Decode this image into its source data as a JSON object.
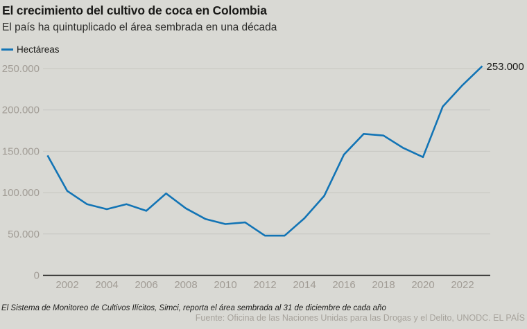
{
  "header": {
    "title": "El crecimiento del cultivo de coca en Colombia",
    "subtitle": "El país ha quintuplicado el área sembrada en una década"
  },
  "legend": {
    "label": "Hectáreas"
  },
  "chart_data": {
    "type": "line",
    "title": "El crecimiento del cultivo de coca en Colombia",
    "subtitle": "El país ha quintuplicado el área sembrada en una década",
    "series": [
      {
        "name": "Hectáreas",
        "x": [
          2001,
          2002,
          2003,
          2004,
          2005,
          2006,
          2007,
          2008,
          2009,
          2010,
          2011,
          2012,
          2013,
          2014,
          2015,
          2016,
          2017,
          2018,
          2019,
          2020,
          2021,
          2022,
          2023
        ],
        "values": [
          145000,
          102000,
          86000,
          80000,
          86000,
          78000,
          99000,
          81000,
          68000,
          62000,
          64000,
          48000,
          48000,
          69000,
          96000,
          146000,
          171000,
          169000,
          154000,
          143000,
          204000,
          230000,
          253000
        ]
      }
    ],
    "end_label": "253.000",
    "xlabel": "",
    "ylabel": "",
    "xlim": [
      2001,
      2023
    ],
    "ylim": [
      0,
      250000
    ],
    "yticks": [
      0,
      50000,
      100000,
      150000,
      200000,
      250000
    ],
    "ytick_labels": [
      "0",
      "50.000",
      "100.000",
      "150.000",
      "200.000",
      "250.000"
    ],
    "xticks": [
      2002,
      2004,
      2006,
      2008,
      2010,
      2012,
      2014,
      2016,
      2018,
      2020,
      2022
    ],
    "xtick_labels": [
      "2002",
      "2004",
      "2006",
      "2008",
      "2010",
      "2012",
      "2014",
      "2016",
      "2018",
      "2020",
      "2022"
    ],
    "grid": true,
    "legend_position": "top-left"
  },
  "footer": {
    "note": "El Sistema de Monitoreo de Cultivos Ilícitos, Simci, reporta el área sembrada al 31 de diciembre de cada año",
    "source": "Fuente: Oficina de las Naciones Unidas para las Drogas y el Delito, UNODC. EL PAÍS"
  },
  "colors": {
    "background": "#d9d9d4",
    "line": "#1274b5",
    "grid": "#c6c6c1",
    "axis": "#1e1e1c",
    "dark_text": "#1a1a18",
    "tick_text": "#a19c95",
    "source_text": "#a7a39c"
  }
}
